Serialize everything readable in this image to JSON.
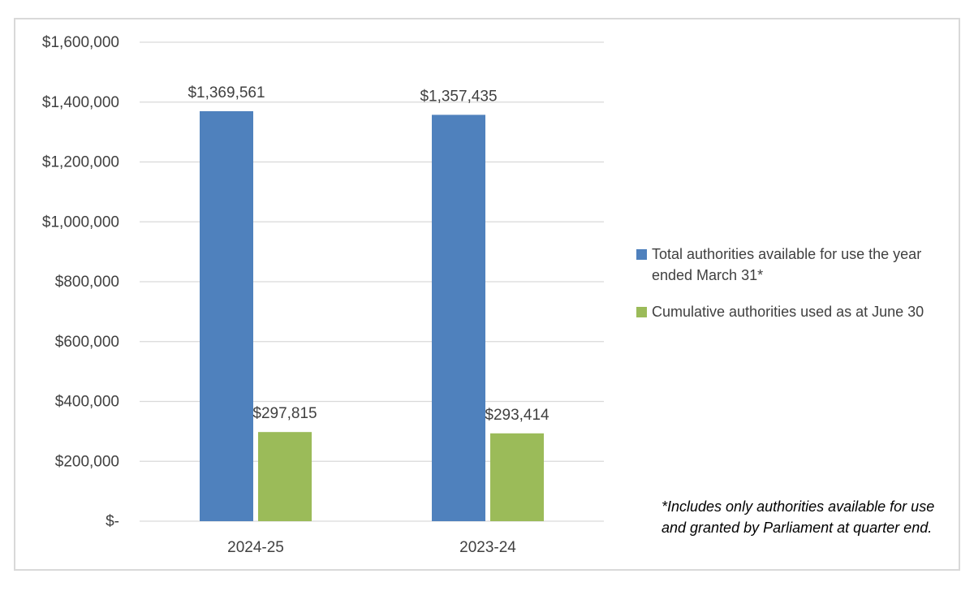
{
  "chart_data": {
    "type": "bar",
    "categories": [
      "2024-25",
      "2023-24"
    ],
    "series": [
      {
        "name": "Total authorities available for use the year ended March 31*",
        "values": [
          1369561,
          1357435
        ],
        "labels": [
          "$1,369,561",
          "$1,357,435"
        ],
        "color": "#4f81bd"
      },
      {
        "name": "Cumulative authorities used as at June 30",
        "values": [
          297815,
          293414
        ],
        "labels": [
          "$297,815",
          "$293,414"
        ],
        "color": "#9bbb59"
      }
    ],
    "yticks": [
      0,
      200000,
      400000,
      600000,
      800000,
      1000000,
      1200000,
      1400000,
      1600000
    ],
    "ytick_labels": [
      "$-",
      "$200,000",
      "$400,000",
      "$600,000",
      "$800,000",
      "$1,000,000",
      "$1,200,000",
      "$1,400,000",
      "$1,600,000"
    ],
    "ylim": [
      0,
      1600000
    ],
    "grid": true,
    "legend_position": "right",
    "gridline_color": "#d9d9d9"
  },
  "footnote": "*Includes only authorities available for use and granted by Parliament at quarter end."
}
